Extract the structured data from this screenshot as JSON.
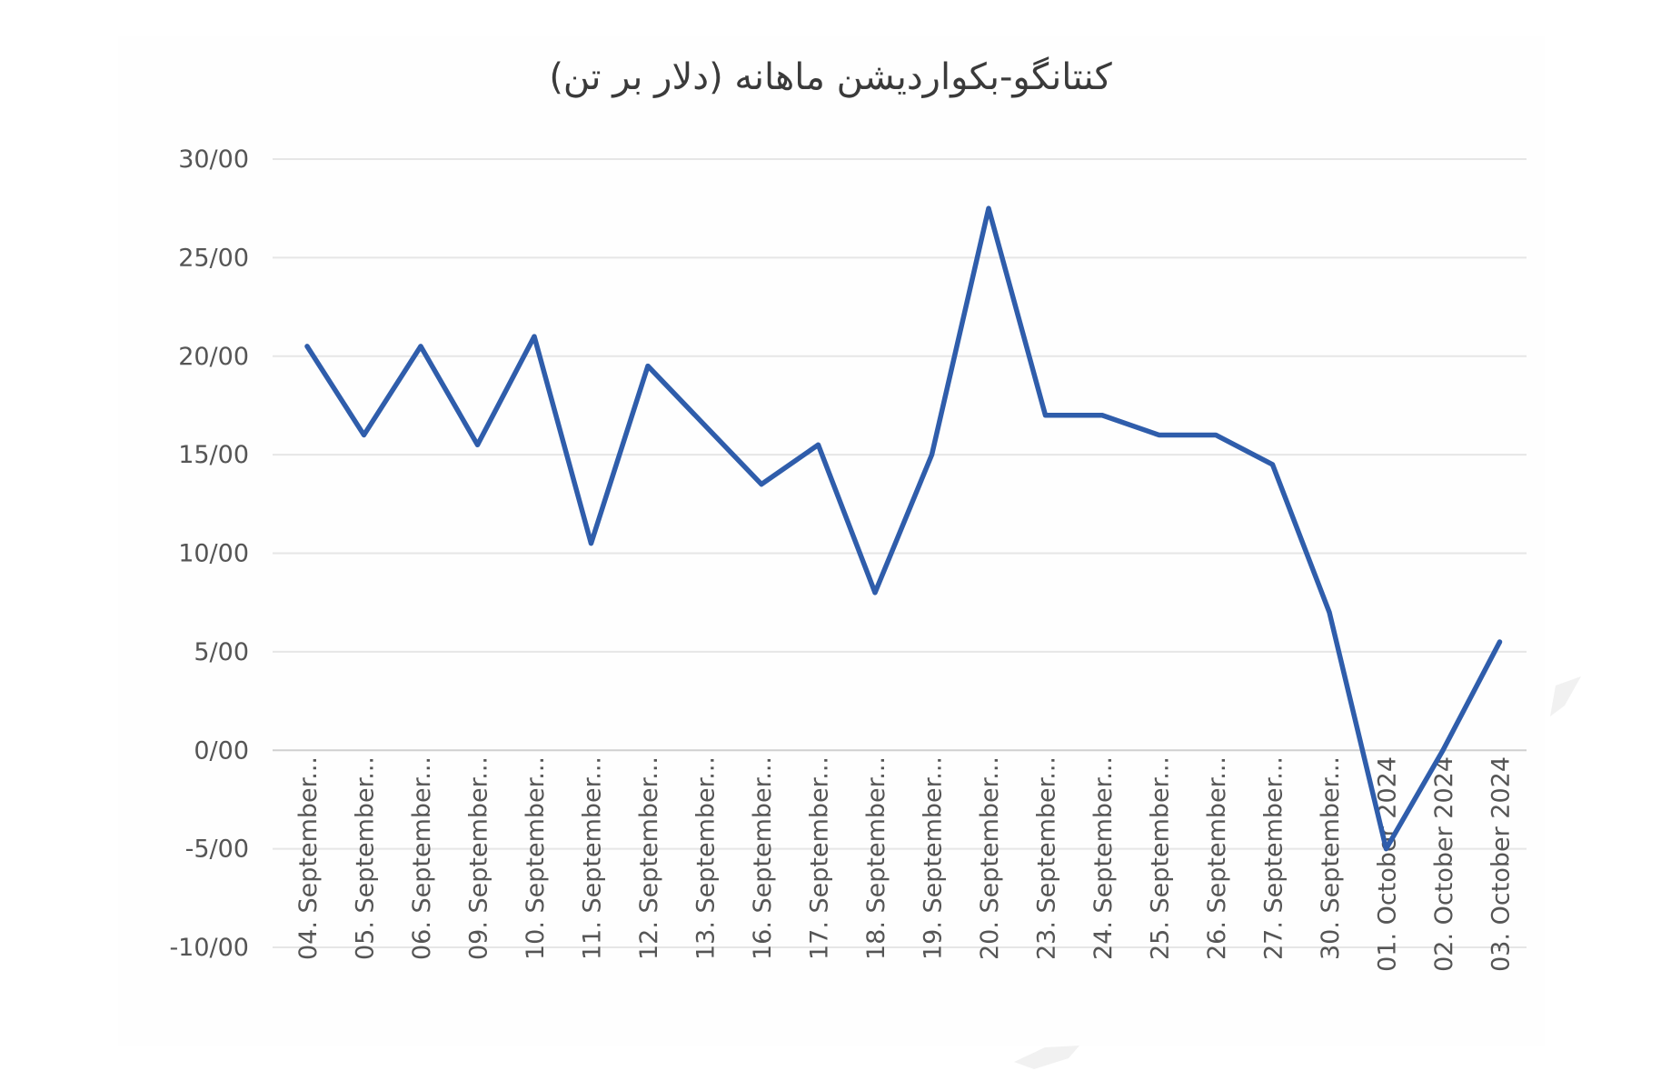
{
  "chart_data": {
    "type": "line",
    "title": "کنتانگو-بکواردیشن ماهانه (دلار بر تن)",
    "xlabel": "",
    "ylabel": "",
    "ylim": [
      -10,
      30
    ],
    "yticks": [
      {
        "value": 30,
        "label": "30/00"
      },
      {
        "value": 25,
        "label": "25/00"
      },
      {
        "value": 20,
        "label": "20/00"
      },
      {
        "value": 15,
        "label": "15/00"
      },
      {
        "value": 10,
        "label": "10/00"
      },
      {
        "value": 5,
        "label": "5/00"
      },
      {
        "value": 0,
        "label": "0/00"
      },
      {
        "value": -5,
        "label": "-5/00"
      },
      {
        "value": -10,
        "label": "-10/00"
      }
    ],
    "grid": true,
    "legend": "none",
    "categories": [
      "04. September...",
      "05. September...",
      "06. September...",
      "09. September...",
      "10. September...",
      "11. September...",
      "12. September...",
      "13. September...",
      "16. September...",
      "17. September...",
      "18. September...",
      "19. September...",
      "20. September...",
      "23. September...",
      "24. September...",
      "25. September...",
      "26. September...",
      "27. September...",
      "30. September...",
      "01. October 2024",
      "02. October 2024",
      "03. October 2024"
    ],
    "series": [
      {
        "color": "#2f5dab",
        "values": [
          20.5,
          16,
          20.5,
          15.5,
          21,
          10.5,
          19.5,
          16.5,
          13.5,
          15.5,
          8,
          15,
          27.5,
          17,
          17,
          16,
          16,
          14.5,
          7,
          -5,
          0,
          5.5
        ]
      }
    ]
  }
}
